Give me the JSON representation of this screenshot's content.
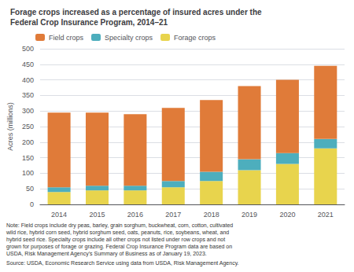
{
  "chart_data": {
    "type": "bar",
    "title": "Forage crops increased as a percentage of insured acres under the\nFederal Crop Insurance Program, 2014–21",
    "categories": [
      "2014",
      "2015",
      "2016",
      "2017",
      "2018",
      "2019",
      "2020",
      "2021"
    ],
    "series": [
      {
        "name": "Forage crops",
        "color": "#E8D44D",
        "values": [
          40,
          45,
          45,
          55,
          75,
          110,
          130,
          180
        ]
      },
      {
        "name": "Specialty crops",
        "color": "#4DAEBD",
        "values": [
          15,
          15,
          15,
          20,
          30,
          35,
          35,
          30
        ]
      },
      {
        "name": "Field crops",
        "color": "#E07B39",
        "values": [
          240,
          235,
          230,
          235,
          230,
          235,
          235,
          235
        ]
      }
    ],
    "stacked": true,
    "ylabel": "Acres (millions)",
    "ylim": [
      0,
      500
    ],
    "yticks": [
      0,
      50,
      100,
      150,
      200,
      250,
      300,
      350,
      400,
      450,
      500
    ],
    "grid": true,
    "legend": "upper left",
    "annotations": [
      "Note: Field crops include dry peas, barley, grain sorghum, buckwheat, corn, cotton, cultivated\nwild rice, hybrid corn seed, hybrid sorghum seed, oats, peanuts, rice, soybeans, wheat, and\nhybrid seed rice. Specialty crops include all other crops not listed under row crops and not\ngrown for purposes of forage or grazing. Federal Crop Insurance Program data are based on\nUSDA, Risk Management Agency’s Summary of Business as of January 19, 2023.",
      "Source: USDA, Economic Research Service using data from USDA, Risk Management Agency."
    ]
  }
}
